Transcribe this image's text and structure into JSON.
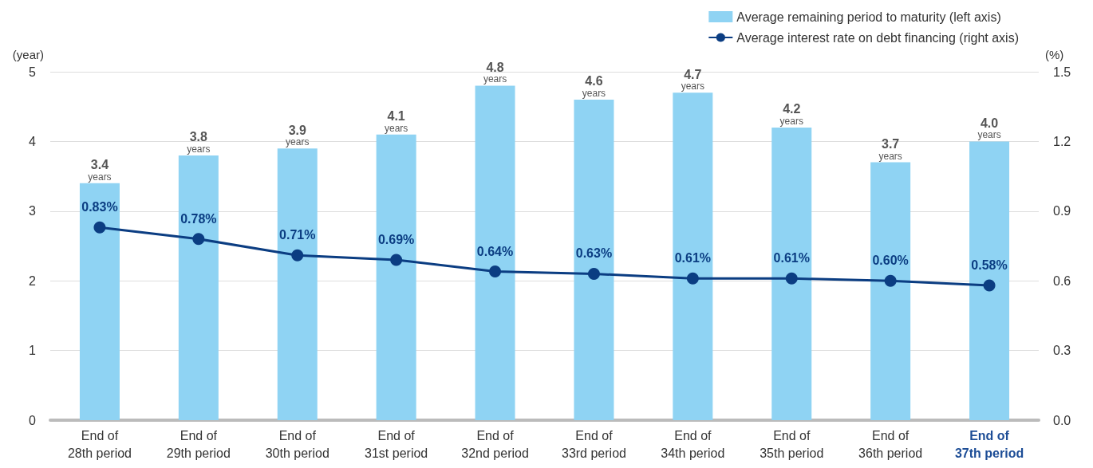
{
  "chart_data": {
    "type": "bar",
    "categories": [
      "End of\n28th period",
      "End of\n29th period",
      "End of\n30th period",
      "End of\n31st period",
      "End of\n32nd period",
      "End of\n33rd period",
      "End of\n34th period",
      "End of\n35th period",
      "End of\n36th period",
      "End of\n37th period"
    ],
    "series": [
      {
        "name": "Average remaining period to maturity (left axis)",
        "color": "#8fd3f3",
        "values": [
          3.4,
          3.8,
          3.9,
          4.1,
          4.8,
          4.6,
          4.7,
          4.2,
          3.7,
          4.0
        ],
        "value_labels": [
          "3.4\nyears",
          "3.8\nyears",
          "3.9\nyears",
          "4.1\nyears",
          "4.8\nyears",
          "4.6\nyears",
          "4.7\nyears",
          "4.2\nyears",
          "3.7\nyears",
          "4.0\nyears"
        ]
      },
      {
        "name": "Average interest rate on debt financing (right axis)",
        "type": "line",
        "axis": "y2",
        "color": "#0b3d82",
        "values": [
          0.83,
          0.78,
          0.71,
          0.69,
          0.64,
          0.63,
          0.61,
          0.61,
          0.6,
          0.58
        ],
        "value_labels": [
          "0.83%",
          "0.78%",
          "0.71%",
          "0.69%",
          "0.64%",
          "0.63%",
          "0.61%",
          "0.61%",
          "0.60%",
          "0.58%"
        ]
      }
    ],
    "ylabel": "(year)",
    "y2label": "(%)",
    "ylim": [
      0,
      5
    ],
    "yticks": [
      0,
      1,
      2,
      3,
      4,
      5
    ],
    "y2lim": [
      0,
      1.5
    ],
    "y2ticks": [
      {
        "value": 0,
        "label": "0.0"
      },
      {
        "value": 0.3,
        "label": "0.3"
      },
      {
        "value": 0.6,
        "label": "0.6"
      },
      {
        "value": 0.9,
        "label": "0.9"
      },
      {
        "value": 1.2,
        "label": "1.2"
      },
      {
        "value": 1.5,
        "label": "1.5"
      }
    ],
    "grid": "y",
    "legend": "top right",
    "marker": "circle",
    "line_style": "solid"
  }
}
